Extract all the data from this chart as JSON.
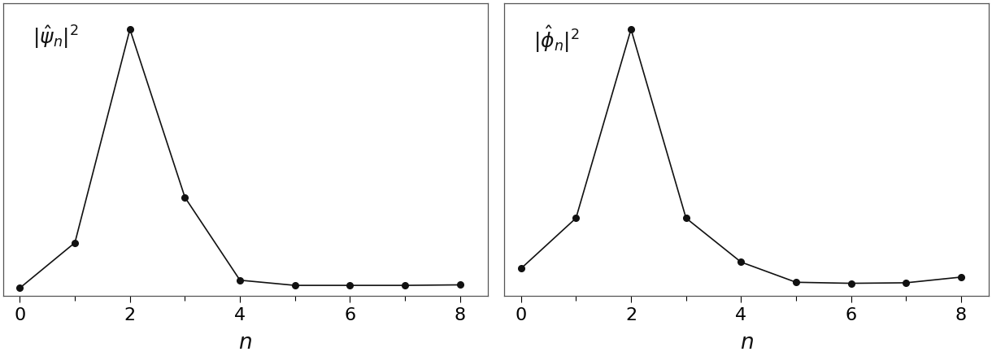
{
  "left_x": [
    0,
    1,
    2,
    3,
    4,
    5,
    6,
    7,
    8
  ],
  "left_y": [
    0.0,
    0.175,
    1.0,
    0.35,
    0.03,
    0.01,
    0.01,
    0.01,
    0.012
  ],
  "right_x": [
    0,
    1,
    2,
    3,
    4,
    5,
    6,
    7,
    8
  ],
  "right_y": [
    0.075,
    0.27,
    1.0,
    0.27,
    0.1,
    0.022,
    0.018,
    0.02,
    0.042
  ],
  "left_label": "$|\\hat{\\psi}_n|^2$",
  "right_label": "$|\\hat{\\phi}_n|^2$",
  "xlabel": "$n$",
  "xtick_labels": [
    0,
    2,
    4,
    6,
    8
  ],
  "xticks_major": [
    0,
    2,
    4,
    6,
    8
  ],
  "xticks_minor": [
    1,
    3,
    5,
    7
  ],
  "xlim": [
    -0.3,
    8.5
  ],
  "ylim": [
    -0.03,
    1.1
  ],
  "marker": "o",
  "markersize": 5.5,
  "linewidth": 1.2,
  "color": "#111111",
  "background": "#ffffff",
  "tick_fontsize": 16,
  "label_fontsize": 19,
  "annot_fontsize": 18,
  "spine_color": "#555555",
  "spine_lw": 0.9
}
